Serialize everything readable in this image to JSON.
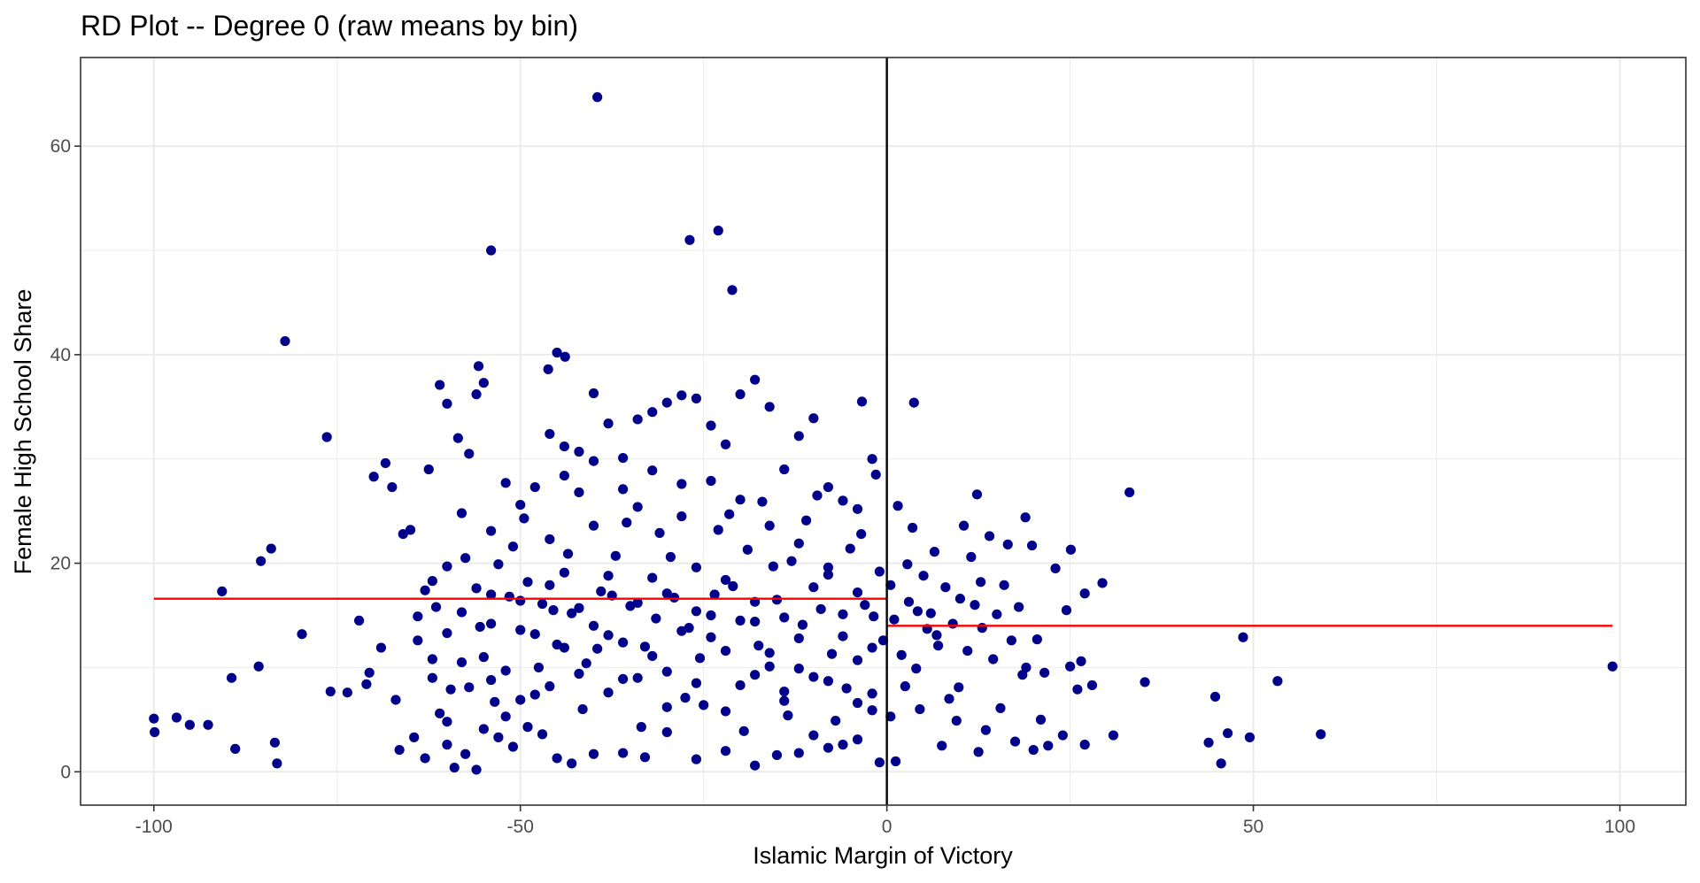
{
  "chart_data": {
    "type": "scatter",
    "title": "RD Plot -- Degree 0 (raw means by bin)",
    "xlabel": "Islamic Margin of Victory",
    "ylabel": "Female High School Share",
    "xlim": [
      -110,
      109
    ],
    "ylim": [
      -3.2,
      68.5
    ],
    "xticks": [
      -100,
      -50,
      0,
      50,
      100
    ],
    "xtick_labels": [
      "-100",
      "-50",
      "0",
      "50",
      "100"
    ],
    "yticks": [
      0,
      20,
      40,
      60
    ],
    "ytick_labels": [
      "0",
      "20",
      "40",
      "60"
    ],
    "grid": true,
    "point_color": "#00008B",
    "fit_color": "#FF0000",
    "cutoff": 0,
    "fit_lines": [
      {
        "x": [
          -100,
          0
        ],
        "y": [
          16.6,
          16.6
        ]
      },
      {
        "x": [
          0,
          99
        ],
        "y": [
          14.0,
          14.0
        ]
      }
    ],
    "points": [
      [
        -39.5,
        64.7
      ],
      [
        -54,
        50
      ],
      [
        -26.9,
        51
      ],
      [
        -23,
        51.9
      ],
      [
        -21.1,
        46.2
      ],
      [
        -82.1,
        41.3
      ],
      [
        -45,
        40.2
      ],
      [
        -43.9,
        39.8
      ],
      [
        -55.7,
        38.9
      ],
      [
        -46.2,
        38.6
      ],
      [
        -76.4,
        32.1
      ],
      [
        3.7,
        35.4
      ],
      [
        -3.4,
        35.5
      ],
      [
        33.1,
        26.8
      ],
      [
        -90.7,
        17.3
      ],
      [
        -84,
        21.4
      ],
      [
        -85.4,
        20.2
      ],
      [
        -79.8,
        13.2
      ],
      [
        -89.4,
        9.0
      ],
      [
        -85.7,
        10.1
      ],
      [
        -100,
        5.1
      ],
      [
        -99.9,
        3.8
      ],
      [
        -96.9,
        5.2
      ],
      [
        -95.1,
        4.5
      ],
      [
        -92.6,
        4.5
      ],
      [
        -88.9,
        2.2
      ],
      [
        -83.5,
        2.8
      ],
      [
        -83.2,
        0.8
      ],
      [
        48.6,
        12.9
      ],
      [
        53.3,
        8.7
      ],
      [
        59.2,
        3.6
      ],
      [
        99,
        10.1
      ],
      [
        44.8,
        7.2
      ],
      [
        46.5,
        3.7
      ],
      [
        49.5,
        3.3
      ],
      [
        43.9,
        2.8
      ],
      [
        45.6,
        0.8
      ],
      [
        35.2,
        8.6
      ],
      [
        30.9,
        3.5
      ],
      [
        29.4,
        18.1
      ],
      [
        25.1,
        21.3
      ],
      [
        18.9,
        24.4
      ],
      [
        12.3,
        26.6
      ],
      [
        -75.9,
        7.7
      ],
      [
        -73.6,
        7.6
      ],
      [
        -71,
        8.4
      ],
      [
        -70.6,
        9.5
      ],
      [
        -70,
        28.3
      ],
      [
        -68.4,
        29.6
      ],
      [
        -67.5,
        27.3
      ],
      [
        -66,
        22.8
      ],
      [
        -65,
        23.2
      ],
      [
        -64,
        14.9
      ],
      [
        -62.5,
        29.0
      ],
      [
        -61,
        37.1
      ],
      [
        -60,
        35.3
      ],
      [
        -58.5,
        32.0
      ],
      [
        -57,
        30.5
      ],
      [
        -56,
        36.2
      ],
      [
        -55,
        37.3
      ],
      [
        -72,
        14.5
      ],
      [
        -69,
        11.9
      ],
      [
        -67,
        6.9
      ],
      [
        -66.5,
        2.1
      ],
      [
        -64.5,
        3.3
      ],
      [
        -63,
        1.3
      ],
      [
        -62,
        9.0
      ],
      [
        -61,
        5.6
      ],
      [
        -60,
        2.6
      ],
      [
        -59,
        0.4
      ],
      [
        -57.5,
        1.7
      ],
      [
        -56,
        0.2
      ],
      [
        -55,
        4.1
      ],
      [
        -53,
        3.3
      ],
      [
        -51,
        2.4
      ],
      [
        -49,
        4.3
      ],
      [
        -47,
        3.6
      ],
      [
        -45,
        1.3
      ],
      [
        -43,
        0.8
      ],
      [
        -40,
        1.7
      ],
      [
        -36,
        1.8
      ],
      [
        -33,
        1.4
      ],
      [
        -30,
        3.8
      ],
      [
        -26,
        1.2
      ],
      [
        -22,
        2.0
      ],
      [
        -18,
        0.6
      ],
      [
        -15,
        1.6
      ],
      [
        -12,
        1.8
      ],
      [
        -8,
        2.3
      ],
      [
        -4,
        3.1
      ],
      [
        -1,
        0.9
      ],
      [
        -2,
        5.9
      ],
      [
        -1.5,
        28.5
      ],
      [
        -2,
        30.0
      ],
      [
        -4,
        25.2
      ],
      [
        -6,
        26.0
      ],
      [
        -8,
        27.3
      ],
      [
        -10,
        33.9
      ],
      [
        -12,
        32.2
      ],
      [
        -14,
        29.0
      ],
      [
        -16,
        35.0
      ],
      [
        -18,
        37.6
      ],
      [
        -20,
        36.2
      ],
      [
        -22,
        31.4
      ],
      [
        -24,
        33.2
      ],
      [
        -26,
        35.8
      ],
      [
        -28,
        36.1
      ],
      [
        -30,
        35.4
      ],
      [
        -32,
        34.5
      ],
      [
        -34,
        33.8
      ],
      [
        -36,
        30.1
      ],
      [
        -38,
        33.4
      ],
      [
        -40,
        36.3
      ],
      [
        -42,
        30.7
      ],
      [
        -44,
        31.2
      ],
      [
        -46,
        32.4
      ],
      [
        -48,
        27.3
      ],
      [
        -50,
        25.6
      ],
      [
        -52,
        27.7
      ],
      [
        -54,
        23.1
      ],
      [
        -58,
        24.8
      ],
      [
        -60,
        19.7
      ],
      [
        -62,
        18.3
      ],
      [
        -63,
        17.4
      ],
      [
        -64,
        12.6
      ],
      [
        -62,
        10.8
      ],
      [
        -60,
        13.3
      ],
      [
        -58,
        15.3
      ],
      [
        -57,
        8.1
      ],
      [
        -56,
        17.6
      ],
      [
        -55,
        11.0
      ],
      [
        -54,
        14.2
      ],
      [
        -53,
        19.9
      ],
      [
        -52,
        9.7
      ],
      [
        -51,
        21.6
      ],
      [
        -50,
        13.6
      ],
      [
        -49,
        18.2
      ],
      [
        -48,
        7.4
      ],
      [
        -47,
        16.1
      ],
      [
        -46,
        22.3
      ],
      [
        -45,
        12.2
      ],
      [
        -44,
        19.1
      ],
      [
        -43,
        15.2
      ],
      [
        -42,
        26.8
      ],
      [
        -41,
        10.4
      ],
      [
        -40,
        23.6
      ],
      [
        -39,
        17.3
      ],
      [
        -38,
        13.1
      ],
      [
        -37,
        20.7
      ],
      [
        -36,
        8.9
      ],
      [
        -35,
        15.9
      ],
      [
        -34,
        25.4
      ],
      [
        -33,
        12.0
      ],
      [
        -32,
        18.6
      ],
      [
        -31,
        22.9
      ],
      [
        -30,
        9.6
      ],
      [
        -29,
        16.7
      ],
      [
        -28,
        27.6
      ],
      [
        -27,
        13.8
      ],
      [
        -26,
        19.6
      ],
      [
        -25,
        6.4
      ],
      [
        -24,
        15.0
      ],
      [
        -23,
        23.2
      ],
      [
        -22,
        11.6
      ],
      [
        -21,
        17.8
      ],
      [
        -20,
        8.3
      ],
      [
        -19,
        21.3
      ],
      [
        -18,
        14.4
      ],
      [
        -17,
        25.9
      ],
      [
        -16,
        10.1
      ],
      [
        -15,
        16.5
      ],
      [
        -14,
        6.8
      ],
      [
        -13,
        20.2
      ],
      [
        -12,
        12.8
      ],
      [
        -11,
        24.1
      ],
      [
        -10,
        9.1
      ],
      [
        -9,
        15.6
      ],
      [
        -8,
        18.9
      ],
      [
        -7,
        4.9
      ],
      [
        -6,
        13.0
      ],
      [
        -5,
        21.4
      ],
      [
        -4,
        10.7
      ],
      [
        -3,
        16.0
      ],
      [
        -2,
        7.5
      ],
      [
        -1,
        19.2
      ],
      [
        -0.5,
        12.6
      ],
      [
        -1.8,
        14.9
      ],
      [
        -3.5,
        22.8
      ],
      [
        -5.5,
        8.0
      ],
      [
        -7.5,
        11.3
      ],
      [
        -9.5,
        26.5
      ],
      [
        -11.5,
        14.1
      ],
      [
        -13.5,
        5.4
      ],
      [
        -15.5,
        19.7
      ],
      [
        -17.5,
        12.1
      ],
      [
        -19.5,
        3.9
      ],
      [
        -21.5,
        24.7
      ],
      [
        -23.5,
        17.0
      ],
      [
        -25.5,
        10.9
      ],
      [
        -27.5,
        7.1
      ],
      [
        -29.5,
        20.6
      ],
      [
        -31.5,
        14.7
      ],
      [
        -33.5,
        4.3
      ],
      [
        -35.5,
        23.9
      ],
      [
        -37.5,
        16.9
      ],
      [
        -39.5,
        11.8
      ],
      [
        -41.5,
        6.0
      ],
      [
        -43.5,
        20.9
      ],
      [
        -45.5,
        15.5
      ],
      [
        -47.5,
        10.0
      ],
      [
        -49.5,
        24.3
      ],
      [
        -51.5,
        16.8
      ],
      [
        -53.5,
        6.7
      ],
      [
        -55.5,
        13.9
      ],
      [
        -57.5,
        20.5
      ],
      [
        -59.5,
        7.9
      ],
      [
        -61.5,
        15.8
      ],
      [
        -44,
        28.4
      ],
      [
        -40,
        29.8
      ],
      [
        -36,
        27.1
      ],
      [
        -32,
        28.9
      ],
      [
        -28,
        24.5
      ],
      [
        -24,
        27.9
      ],
      [
        -20,
        26.1
      ],
      [
        -16,
        23.6
      ],
      [
        -12,
        21.9
      ],
      [
        -8,
        19.6
      ],
      [
        -4,
        17.2
      ],
      [
        -6,
        15.1
      ],
      [
        -10,
        17.7
      ],
      [
        -14,
        14.8
      ],
      [
        -18,
        16.3
      ],
      [
        -22,
        18.4
      ],
      [
        -26,
        15.4
      ],
      [
        -30,
        17.1
      ],
      [
        -34,
        16.2
      ],
      [
        -38,
        18.8
      ],
      [
        -42,
        15.7
      ],
      [
        -46,
        17.9
      ],
      [
        -50,
        16.4
      ],
      [
        -54,
        17.0
      ],
      [
        -48,
        13.2
      ],
      [
        -44,
        11.9
      ],
      [
        -40,
        14.0
      ],
      [
        -36,
        12.4
      ],
      [
        -32,
        11.1
      ],
      [
        -28,
        13.5
      ],
      [
        -24,
        12.9
      ],
      [
        -20,
        14.5
      ],
      [
        -16,
        11.4
      ],
      [
        -12,
        9.9
      ],
      [
        -8,
        8.7
      ],
      [
        -4,
        6.6
      ],
      [
        -2,
        11.9
      ],
      [
        -6,
        2.6
      ],
      [
        -10,
        3.5
      ],
      [
        -14,
        7.7
      ],
      [
        -18,
        9.3
      ],
      [
        -22,
        5.8
      ],
      [
        -26,
        8.5
      ],
      [
        -30,
        6.2
      ],
      [
        -34,
        9.0
      ],
      [
        -38,
        7.6
      ],
      [
        -42,
        9.4
      ],
      [
        -46,
        8.2
      ],
      [
        -50,
        6.9
      ],
      [
        -54,
        8.8
      ],
      [
        -58,
        10.5
      ],
      [
        -60,
        4.8
      ],
      [
        -52,
        5.3
      ],
      [
        0.5,
        17.9
      ],
      [
        1,
        14.6
      ],
      [
        1.5,
        25.5
      ],
      [
        2,
        11.2
      ],
      [
        2.5,
        8.2
      ],
      [
        3,
        16.3
      ],
      [
        3.5,
        23.4
      ],
      [
        4,
        9.9
      ],
      [
        4.5,
        6.0
      ],
      [
        5,
        18.8
      ],
      [
        5.5,
        13.7
      ],
      [
        6,
        15.2
      ],
      [
        6.5,
        21.1
      ],
      [
        7,
        12.1
      ],
      [
        7.5,
        2.5
      ],
      [
        8,
        17.7
      ],
      [
        8.5,
        7.0
      ],
      [
        9,
        14.2
      ],
      [
        9.5,
        4.9
      ],
      [
        10,
        16.6
      ],
      [
        10.5,
        23.6
      ],
      [
        11,
        11.6
      ],
      [
        11.5,
        20.6
      ],
      [
        12,
        16.0
      ],
      [
        12.5,
        1.9
      ],
      [
        13,
        13.8
      ],
      [
        13.5,
        4.0
      ],
      [
        14,
        22.6
      ],
      [
        14.5,
        10.8
      ],
      [
        15,
        15.1
      ],
      [
        15.5,
        6.1
      ],
      [
        16,
        17.9
      ],
      [
        17,
        12.6
      ],
      [
        17.5,
        2.9
      ],
      [
        18,
        15.8
      ],
      [
        19,
        10.0
      ],
      [
        20,
        2.1
      ],
      [
        20.5,
        12.7
      ],
      [
        21,
        5.0
      ],
      [
        21.5,
        9.5
      ],
      [
        22,
        2.5
      ],
      [
        23,
        19.5
      ],
      [
        24,
        3.5
      ],
      [
        25,
        10.1
      ],
      [
        26,
        7.9
      ],
      [
        27,
        17.1
      ],
      [
        28,
        8.3
      ],
      [
        27,
        2.6
      ],
      [
        0.5,
        5.3
      ],
      [
        1.2,
        1.0
      ],
      [
        2.8,
        19.9
      ],
      [
        4.2,
        15.4
      ],
      [
        6.8,
        13.1
      ],
      [
        9.8,
        8.1
      ],
      [
        12.8,
        18.2
      ],
      [
        16.5,
        21.8
      ],
      [
        18.5,
        9.3
      ],
      [
        19.8,
        21.7
      ],
      [
        24.5,
        15.5
      ],
      [
        26.5,
        10.6
      ]
    ]
  }
}
